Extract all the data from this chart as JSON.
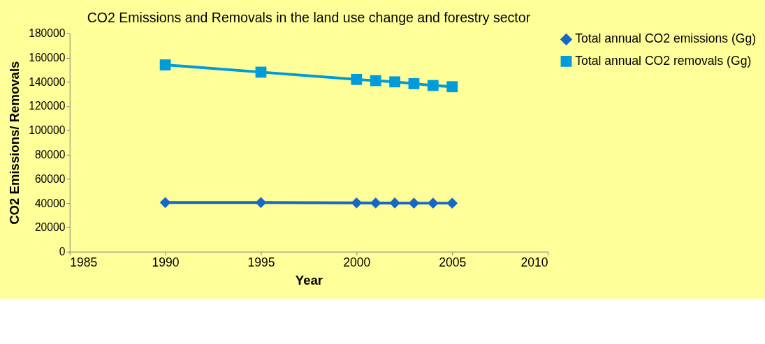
{
  "chart_data": {
    "type": "line",
    "title": "CO2 Emissions and Removals in the land use change and forestry sector",
    "xlabel": "Year",
    "ylabel": "CO2 Emissions/ Removals",
    "x": [
      1990,
      1995,
      2000,
      2001,
      2002,
      2003,
      2004,
      2005
    ],
    "series": [
      {
        "name": "Total annual CO2 emissions (Gg)",
        "color": "#1668c4",
        "marker": "diamond",
        "values": [
          40500,
          40500,
          40200,
          40100,
          40100,
          40000,
          40000,
          40000
        ]
      },
      {
        "name": "Total annual CO2 removals (Gg)",
        "color": "#009bd8",
        "marker": "square",
        "values": [
          154000,
          148000,
          142000,
          141000,
          140000,
          138500,
          137000,
          136000
        ]
      }
    ],
    "xlim": [
      1985,
      2010
    ],
    "xticks": [
      1985,
      1990,
      1995,
      2000,
      2005,
      2010
    ],
    "ylim": [
      0,
      180000
    ],
    "yticks": [
      0,
      20000,
      40000,
      60000,
      80000,
      100000,
      120000,
      140000,
      160000,
      180000
    ],
    "grid": false,
    "legend": "right",
    "line_style": "solid"
  }
}
